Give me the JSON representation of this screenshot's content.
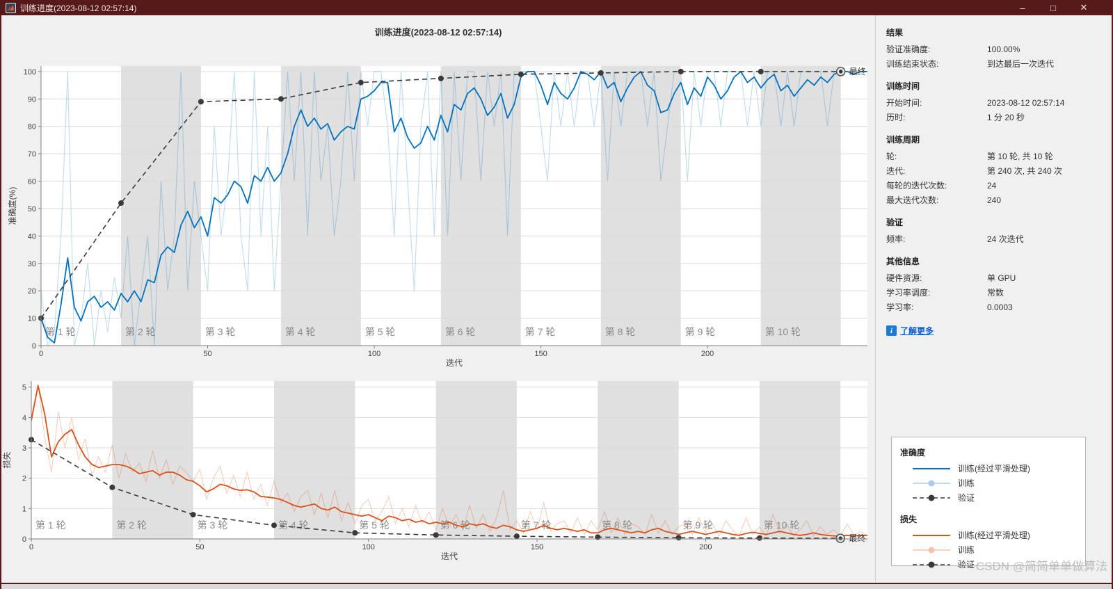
{
  "window": {
    "title": "训练进度(2023-08-12 02:57:14)",
    "controls": {
      "minimize": "–",
      "maximize": "□",
      "close": "✕"
    }
  },
  "figure_title": "训练进度(2023-08-12 02:57:14)",
  "watermark": "CSDN @简简单单做算法",
  "colors": {
    "titlebar_bg": "#571a1a",
    "accent_blue": "#0072BD",
    "accent_blue_light": "#a8cde9",
    "accent_orange": "#D95319",
    "accent_orange_light": "#f5c4a8",
    "validation": "#3a3a3a",
    "band_gray": "#e0e0e0",
    "link_blue": "#0b5ed7"
  },
  "info_panel": {
    "sections": [
      {
        "heading": "结果",
        "rows": [
          {
            "label": "验证准确度:",
            "value": "100.00%"
          },
          {
            "label": "训练结束状态:",
            "value": "到达最后一次迭代"
          }
        ]
      },
      {
        "heading": "训练时间",
        "rows": [
          {
            "label": "开始时间:",
            "value": "2023-08-12 02:57:14"
          },
          {
            "label": "历时:",
            "value": "1 分 20 秒"
          }
        ]
      },
      {
        "heading": "训练周期",
        "rows": [
          {
            "label": "轮:",
            "value": "第 10 轮, 共 10 轮"
          },
          {
            "label": "迭代:",
            "value": "第 240 次, 共 240 次"
          },
          {
            "label": "每轮的迭代次数:",
            "value": "24"
          },
          {
            "label": "最大迭代次数:",
            "value": "240"
          }
        ]
      },
      {
        "heading": "验证",
        "rows": [
          {
            "label": "频率:",
            "value": "24 次迭代"
          }
        ]
      },
      {
        "heading": "其他信息",
        "rows": [
          {
            "label": "硬件资源:",
            "value": "单 GPU"
          },
          {
            "label": "学习率调度:",
            "value": "常数"
          },
          {
            "label": "学习率:",
            "value": "0.0003"
          }
        ]
      }
    ],
    "learn_more": {
      "label": "了解更多",
      "icon_glyph": "i"
    }
  },
  "legend": {
    "sections": [
      {
        "heading": "准确度",
        "items": [
          {
            "label": "训练(经过平滑处理)",
            "style": "solid",
            "color": "#0072BD"
          },
          {
            "label": "训练",
            "style": "raw",
            "color": "#a8cde9"
          },
          {
            "label": "验证",
            "style": "validation",
            "color": "#3a3a3a"
          }
        ]
      },
      {
        "heading": "损失",
        "items": [
          {
            "label": "训练(经过平滑处理)",
            "style": "solid",
            "color": "#D95319"
          },
          {
            "label": "训练",
            "style": "raw",
            "color": "#f5c4a8"
          },
          {
            "label": "验证",
            "style": "validation",
            "color": "#3a3a3a"
          }
        ]
      }
    ]
  },
  "chart_data": [
    {
      "type": "line",
      "title": "训练进度(2023-08-12 02:57:14)",
      "xlabel": "迭代",
      "ylabel": "准确度(%)",
      "xlim": [
        0,
        248
      ],
      "ylim": [
        0,
        102
      ],
      "xticks": [
        0,
        50,
        100,
        150,
        200
      ],
      "yticks": [
        0,
        10,
        20,
        30,
        40,
        50,
        60,
        70,
        80,
        90,
        100
      ],
      "grid": true,
      "epoch_count": 10,
      "iterations_per_epoch": 24,
      "epoch_labels": [
        "第 1 轮",
        "第 2 轮",
        "第 3 轮",
        "第 4 轮",
        "第 5 轮",
        "第 6 轮",
        "第 7 轮",
        "第 8 轮",
        "第 9 轮",
        "第 10 轮"
      ],
      "final_label": "最终",
      "x_step": 2,
      "series": [
        {
          "name": "训练(经过平滑处理)",
          "style": "smoothed",
          "color": "#0072BD",
          "values": [
            10,
            3,
            1,
            15,
            32,
            14,
            9,
            16,
            18,
            14,
            16,
            13,
            19,
            16,
            20,
            16,
            24,
            23,
            33,
            36,
            34,
            44,
            49,
            43,
            47,
            40,
            54,
            52,
            55,
            60,
            58,
            52,
            62,
            60,
            65,
            60,
            63,
            70,
            80,
            86,
            80,
            83,
            79,
            81,
            75,
            78,
            80,
            79,
            90,
            91,
            93,
            96,
            96,
            78,
            83,
            76,
            72,
            74,
            80,
            75,
            84,
            78,
            88,
            86,
            92,
            94,
            90,
            84,
            87,
            92,
            83,
            88,
            98,
            100,
            100,
            95,
            88,
            96,
            92,
            90,
            94,
            100,
            99,
            97,
            100,
            94,
            96,
            89,
            94,
            98,
            100,
            95,
            93,
            85,
            86,
            92,
            96,
            88,
            94,
            91,
            98,
            95,
            90,
            93,
            98,
            100,
            96,
            98,
            94,
            97,
            99,
            93,
            95,
            91,
            94,
            97,
            95,
            98,
            96,
            99,
            100,
            100,
            99,
            100,
            100
          ]
        },
        {
          "name": "训练",
          "style": "raw",
          "color": "#0072BD",
          "opacity": 0.25,
          "values": [
            20,
            0,
            5,
            40,
            100,
            0,
            10,
            30,
            0,
            20,
            5,
            25,
            10,
            40,
            0,
            20,
            40,
            0,
            60,
            20,
            40,
            100,
            20,
            60,
            40,
            20,
            80,
            40,
            60,
            100,
            40,
            20,
            100,
            40,
            80,
            20,
            60,
            100,
            60,
            100,
            40,
            100,
            60,
            80,
            40,
            60,
            100,
            60,
            100,
            80,
            100,
            100,
            80,
            40,
            100,
            60,
            20,
            80,
            100,
            40,
            100,
            40,
            100,
            60,
            100,
            100,
            60,
            100,
            80,
            100,
            40,
            100,
            100,
            100,
            100,
            80,
            60,
            100,
            80,
            100,
            80,
            100,
            100,
            80,
            100,
            60,
            100,
            80,
            100,
            100,
            100,
            80,
            100,
            60,
            80,
            100,
            100,
            60,
            100,
            80,
            100,
            100,
            80,
            100,
            100,
            100,
            80,
            100,
            80,
            100,
            100,
            80,
            100,
            80,
            100,
            100,
            100,
            100,
            80,
            100,
            100,
            100,
            100,
            100,
            100
          ]
        },
        {
          "name": "验证",
          "style": "validation",
          "color": "#3a3a3a",
          "x": [
            0,
            24,
            48,
            72,
            96,
            120,
            144,
            168,
            192,
            216,
            240
          ],
          "values": [
            10,
            52,
            89,
            90,
            96,
            97.5,
            99,
            99.5,
            100,
            100,
            100
          ]
        }
      ]
    },
    {
      "type": "line",
      "xlabel": "迭代",
      "ylabel": "损失",
      "xlim": [
        0,
        248
      ],
      "ylim": [
        0,
        5.2
      ],
      "xticks": [
        0,
        50,
        100,
        150,
        200
      ],
      "yticks": [
        0,
        1,
        2,
        3,
        4,
        5
      ],
      "grid": true,
      "epoch_count": 10,
      "iterations_per_epoch": 24,
      "epoch_labels": [
        "第 1 轮",
        "第 2 轮",
        "第 3 轮",
        "第 4 轮",
        "第 5 轮",
        "第 6 轮",
        "第 7 轮",
        "第 8 轮",
        "第 9 轮",
        "第 10 轮"
      ],
      "final_label": "最终",
      "x_step": 2,
      "series": [
        {
          "name": "训练(经过平滑处理)",
          "style": "smoothed",
          "color": "#D95319",
          "values": [
            3.9,
            5.05,
            4.1,
            2.7,
            3.2,
            3.45,
            3.6,
            3.1,
            2.7,
            2.45,
            2.35,
            2.4,
            2.45,
            2.45,
            2.4,
            2.3,
            2.15,
            2.2,
            2.25,
            2.1,
            2.2,
            2.2,
            2.1,
            1.95,
            1.9,
            1.75,
            1.55,
            1.65,
            1.8,
            1.75,
            1.65,
            1.6,
            1.62,
            1.55,
            1.4,
            1.38,
            1.35,
            1.3,
            1.2,
            1.1,
            1.05,
            1.1,
            1.15,
            1.0,
            0.95,
            1.05,
            0.9,
            0.85,
            0.8,
            0.75,
            0.8,
            0.7,
            0.6,
            0.75,
            0.7,
            0.6,
            0.65,
            0.55,
            0.6,
            0.5,
            0.55,
            0.5,
            0.55,
            0.45,
            0.4,
            0.5,
            0.45,
            0.5,
            0.4,
            0.35,
            0.45,
            0.4,
            0.3,
            0.25,
            0.3,
            0.35,
            0.45,
            0.35,
            0.3,
            0.35,
            0.3,
            0.25,
            0.3,
            0.2,
            0.2,
            0.3,
            0.35,
            0.3,
            0.25,
            0.2,
            0.25,
            0.2,
            0.3,
            0.35,
            0.25,
            0.2,
            0.15,
            0.2,
            0.25,
            0.2,
            0.15,
            0.2,
            0.25,
            0.2,
            0.15,
            0.12,
            0.18,
            0.22,
            0.18,
            0.15,
            0.2,
            0.25,
            0.2,
            0.15,
            0.12,
            0.15,
            0.2,
            0.15,
            0.12,
            0.1,
            0.1,
            0.12,
            0.1,
            0.12,
            0.12
          ]
        },
        {
          "name": "训练",
          "style": "raw",
          "color": "#D95319",
          "opacity": 0.28,
          "values": [
            4.0,
            5.1,
            3.3,
            2.2,
            4.2,
            3.0,
            4.0,
            2.6,
            3.3,
            2.1,
            2.7,
            2.2,
            3.1,
            2.0,
            2.8,
            2.2,
            2.5,
            1.9,
            2.9,
            2.0,
            2.6,
            1.8,
            2.4,
            2.2,
            1.9,
            2.3,
            1.3,
            2.0,
            2.4,
            1.5,
            2.1,
            1.4,
            2.2,
            1.3,
            1.8,
            1.1,
            1.9,
            1.2,
            1.5,
            0.9,
            1.4,
            1.6,
            0.8,
            1.5,
            0.7,
            1.6,
            0.6,
            1.2,
            0.5,
            1.1,
            1.3,
            0.6,
            0.9,
            1.4,
            0.5,
            1.0,
            0.4,
            1.1,
            0.5,
            0.9,
            0.3,
            1.0,
            0.4,
            0.8,
            0.3,
            1.1,
            0.35,
            0.8,
            0.25,
            0.7,
            1.6,
            0.3,
            0.6,
            0.2,
            0.9,
            0.3,
            1.2,
            0.25,
            0.5,
            0.6,
            0.2,
            0.7,
            0.15,
            0.6,
            0.3,
            0.9,
            0.2,
            0.7,
            0.15,
            0.5,
            0.4,
            0.15,
            0.8,
            0.2,
            0.6,
            0.15,
            0.4,
            0.5,
            0.15,
            0.7,
            0.2,
            0.5,
            0.1,
            0.6,
            0.3,
            0.1,
            0.7,
            0.15,
            0.4,
            0.1,
            0.8,
            0.2,
            0.5,
            0.12,
            0.3,
            0.6,
            0.1,
            0.4,
            0.15,
            0.3,
            0.1,
            0.5,
            0.12,
            0.25,
            0.1
          ]
        },
        {
          "name": "验证",
          "style": "validation",
          "color": "#3a3a3a",
          "x": [
            0,
            24,
            48,
            72,
            96,
            120,
            144,
            168,
            192,
            216,
            240
          ],
          "values": [
            3.27,
            1.7,
            0.8,
            0.45,
            0.2,
            0.13,
            0.09,
            0.06,
            0.04,
            0.03,
            0.02
          ]
        }
      ]
    }
  ]
}
